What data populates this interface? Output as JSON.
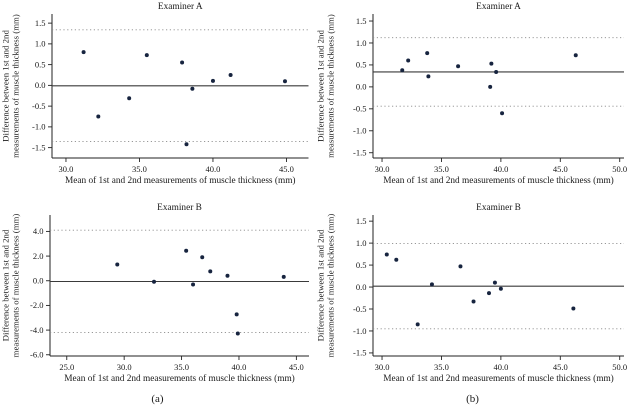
{
  "figure": {
    "captions": [
      "(a)",
      "(b)"
    ],
    "colors": {
      "background": "#ffffff",
      "point": "#17243f",
      "axis": "#222222",
      "text": "#1a1a1a",
      "mean_line": "#3a3a3a",
      "loa_line": "#8a8a8a"
    }
  },
  "chart_data": [
    {
      "id": "examiner-a-panel-a",
      "type": "scatter",
      "title": "Examiner A",
      "xlabel": "Mean of 1st and 2nd measurements of muscle thickness (mm)",
      "ylabel": "Difference between 1st and 2nd measurements of muscle thickness (mm)",
      "ylabel_lines": [
        "Difference between 1st and 2nd",
        "measurements of muscle thickness (mm)"
      ],
      "xlim": [
        29.05,
        46.5
      ],
      "ylim": [
        -1.75,
        1.72
      ],
      "xticks": [
        30.0,
        35.0,
        40.0,
        45.0
      ],
      "yticks": [
        1.5,
        1.0,
        0.5,
        0.0,
        -0.5,
        -1.0,
        -1.5
      ],
      "grid": false,
      "legend": null,
      "mean_line": -0.01,
      "upper_loa": 1.34,
      "lower_loa": -1.35,
      "points": [
        [
          31.2,
          0.8
        ],
        [
          32.2,
          -0.75
        ],
        [
          34.3,
          -0.31
        ],
        [
          35.5,
          0.73
        ],
        [
          37.9,
          0.55
        ],
        [
          38.2,
          -1.42
        ],
        [
          38.6,
          -0.08
        ],
        [
          40.0,
          0.11
        ],
        [
          41.2,
          0.25
        ],
        [
          44.9,
          0.1
        ]
      ]
    },
    {
      "id": "examiner-a-panel-b",
      "type": "scatter",
      "title": "Examiner A",
      "xlabel": "Mean of 1st and 2nd measurements of muscle thickness (mm)",
      "ylabel": "Difference between 1st and 2nd measurements of muscle thickness (mm)",
      "ylabel_lines": [
        "Difference between 1st and 2nd",
        "measurements of muscle thickness (mm)"
      ],
      "xlim": [
        29.24,
        50.36
      ],
      "ylim": [
        -1.62,
        1.66
      ],
      "xticks": [
        30.0,
        35.0,
        40.0,
        45.0,
        50.0
      ],
      "yticks": [
        1.5,
        1.0,
        0.5,
        0.0,
        -0.5,
        -1.0,
        -1.5
      ],
      "grid": false,
      "legend": null,
      "mean_line": 0.34,
      "upper_loa": 1.12,
      "lower_loa": -0.44,
      "points": [
        [
          31.7,
          0.38
        ],
        [
          32.2,
          0.6
        ],
        [
          33.8,
          0.77
        ],
        [
          33.9,
          0.24
        ],
        [
          36.4,
          0.47
        ],
        [
          39.1,
          0.0
        ],
        [
          39.2,
          0.53
        ],
        [
          39.6,
          0.34
        ],
        [
          40.1,
          -0.6
        ],
        [
          46.3,
          0.72
        ]
      ]
    },
    {
      "id": "examiner-b-panel-a",
      "type": "scatter",
      "title": "Examiner B",
      "xlabel": "Mean of 1st and 2nd measurements of muscle thickness (mm)",
      "ylabel": "Difference between 1st and 2nd measurements of muscle thickness (mm)",
      "ylabel_lines": [
        "Difference between 1st and 2nd",
        "measurements of muscle thickness (mm)"
      ],
      "xlim": [
        23.54,
        46.1
      ],
      "ylim": [
        -6.1,
        5.33
      ],
      "xticks": [
        25.0,
        30.0,
        35.0,
        40.0,
        45.0
      ],
      "yticks": [
        4.0,
        2.0,
        0.0,
        -2.0,
        -4.0,
        -6.0
      ],
      "grid": false,
      "legend": null,
      "mean_line": -0.06,
      "upper_loa": 4.1,
      "lower_loa": -4.2,
      "points": [
        [
          29.4,
          1.32
        ],
        [
          32.6,
          -0.08
        ],
        [
          35.4,
          2.43
        ],
        [
          36.0,
          -0.3
        ],
        [
          36.8,
          1.9
        ],
        [
          37.5,
          0.76
        ],
        [
          39.0,
          0.41
        ],
        [
          39.8,
          -2.73
        ],
        [
          39.9,
          -4.28
        ],
        [
          43.9,
          0.31
        ]
      ]
    },
    {
      "id": "examiner-b-panel-b",
      "type": "scatter",
      "title": "Examiner B",
      "xlabel": "Mean of 1st and 2nd measurements of muscle thickness (mm)",
      "ylabel": "Difference between 1st and 2nd measurements of muscle thickness (mm)",
      "ylabel_lines": [
        "Difference between 1st and 2nd",
        "measurements of muscle thickness (mm)"
      ],
      "xlim": [
        29.24,
        50.36
      ],
      "ylim": [
        -1.57,
        1.64
      ],
      "xticks": [
        30.0,
        35.0,
        40.0,
        45.0,
        50.0
      ],
      "yticks": [
        1.5,
        1.0,
        0.5,
        0.0,
        -0.5,
        -1.0,
        -1.5
      ],
      "grid": false,
      "legend": null,
      "mean_line": 0.02,
      "upper_loa": 0.99,
      "lower_loa": -0.95,
      "points": [
        [
          30.4,
          0.74
        ],
        [
          31.2,
          0.62
        ],
        [
          33.0,
          -0.85
        ],
        [
          34.2,
          0.06
        ],
        [
          36.6,
          0.47
        ],
        [
          37.7,
          -0.33
        ],
        [
          39.0,
          -0.14
        ],
        [
          39.5,
          0.1
        ],
        [
          40.0,
          -0.04
        ],
        [
          46.1,
          -0.49
        ]
      ]
    }
  ]
}
